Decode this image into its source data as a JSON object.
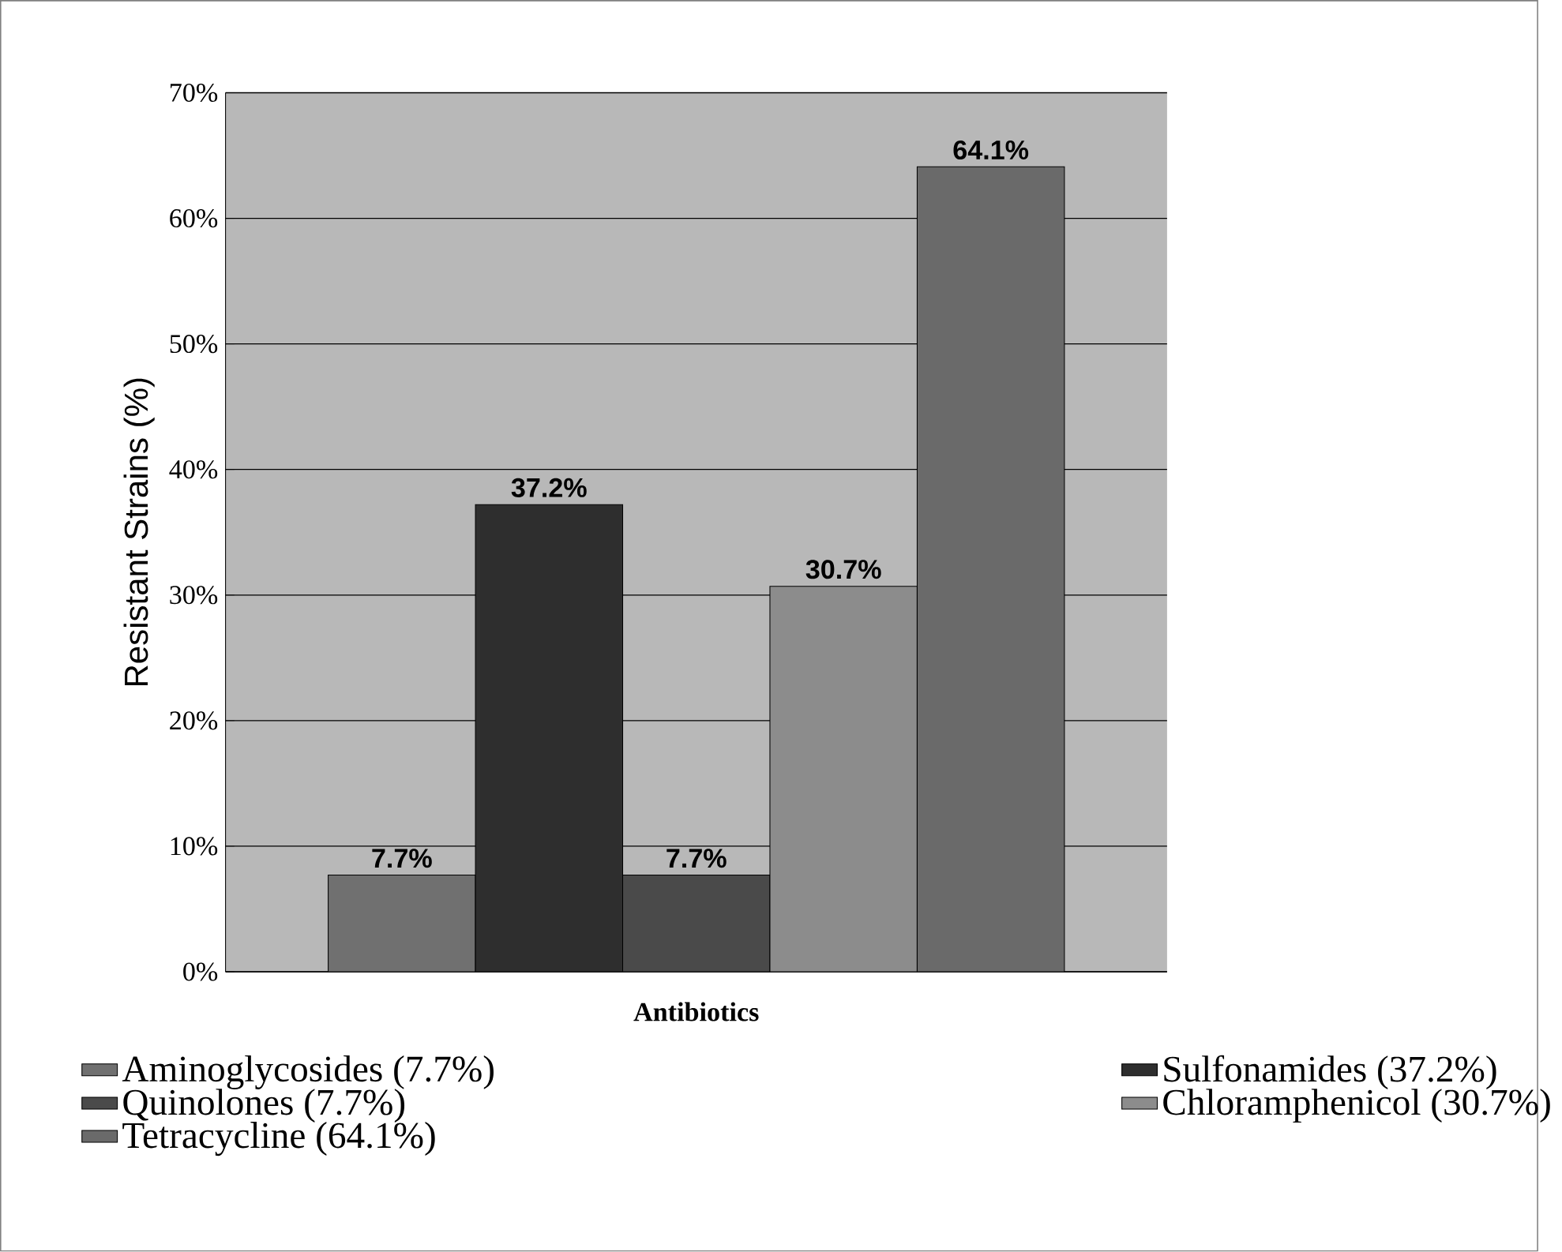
{
  "chart_data": {
    "type": "bar",
    "xlabel": "Antibiotics",
    "ylabel": "Resistant Strains (%)",
    "categories": [
      null
    ],
    "series": [
      {
        "name": "Aminoglycosides (7.7%)",
        "color": "#707070",
        "values": [
          7.7
        ],
        "value_labels": [
          "7.7%"
        ]
      },
      {
        "name": "Sulfonamides (37.2%)",
        "color": "#2e2e2e",
        "values": [
          37.2
        ],
        "value_labels": [
          "37.2%"
        ]
      },
      {
        "name": "Quinolones (7.7%)",
        "color": "#4a4a4a",
        "values": [
          7.7
        ],
        "value_labels": [
          "7.7%"
        ]
      },
      {
        "name": "Chloramphenicol (30.7%)",
        "color": "#8c8c8c",
        "values": [
          30.7
        ],
        "value_labels": [
          "30.7%"
        ]
      },
      {
        "name": "Tetracycline (64.1%)",
        "color": "#6a6a6a",
        "values": [
          64.1
        ],
        "value_labels": [
          "64.1%"
        ]
      }
    ],
    "ylim": [
      0,
      70
    ],
    "yticks": [
      {
        "value": 0,
        "label": "0%"
      },
      {
        "value": 10,
        "label": "10%"
      },
      {
        "value": 20,
        "label": "20%"
      },
      {
        "value": 30,
        "label": "30%"
      },
      {
        "value": 40,
        "label": "40%"
      },
      {
        "value": 50,
        "label": "50%"
      },
      {
        "value": 60,
        "label": "60%"
      },
      {
        "value": 70,
        "label": "70%"
      }
    ],
    "grid": "y",
    "legend": "bottom"
  }
}
